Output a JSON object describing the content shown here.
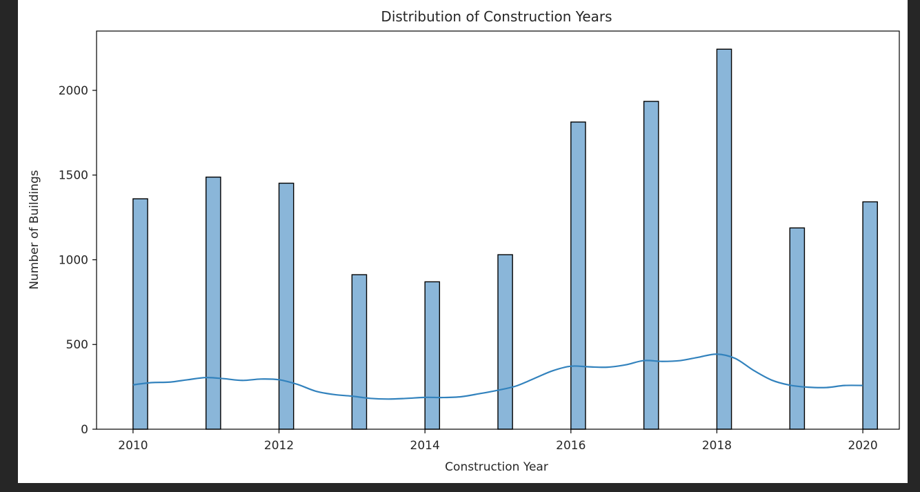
{
  "chart_data": {
    "type": "bar",
    "title": "Distribution of Construction Years",
    "xlabel": "Construction Year",
    "ylabel": "Number of Buildings",
    "xlim": [
      2009.5,
      2020.5
    ],
    "ylim": [
      0,
      2350
    ],
    "xticks": [
      "2010",
      "2012",
      "2014",
      "2016",
      "2018",
      "2020"
    ],
    "yticks": [
      "0",
      "500",
      "1000",
      "1500",
      "2000"
    ],
    "bar_color": "#8ab6d9",
    "bar_edge_color": "#000000",
    "kde_color": "#3282bd",
    "bins": [
      {
        "x_start": 2010.0,
        "x_end": 2010.2,
        "count": 1360
      },
      {
        "x_start": 2011.0,
        "x_end": 2011.2,
        "count": 1488
      },
      {
        "x_start": 2012.0,
        "x_end": 2012.2,
        "count": 1452
      },
      {
        "x_start": 2013.0,
        "x_end": 2013.2,
        "count": 912
      },
      {
        "x_start": 2014.0,
        "x_end": 2014.2,
        "count": 870
      },
      {
        "x_start": 2015.0,
        "x_end": 2015.2,
        "count": 1030
      },
      {
        "x_start": 2016.0,
        "x_end": 2016.2,
        "count": 1813
      },
      {
        "x_start": 2017.0,
        "x_end": 2017.2,
        "count": 1935
      },
      {
        "x_start": 2018.0,
        "x_end": 2018.2,
        "count": 2243
      },
      {
        "x_start": 2019.0,
        "x_end": 2019.2,
        "count": 1188
      },
      {
        "x_start": 2020.0,
        "x_end": 2020.2,
        "count": 1342
      }
    ],
    "kde": {
      "x": [
        2010.0,
        2010.25,
        2010.5,
        2010.75,
        2011.0,
        2011.25,
        2011.5,
        2011.75,
        2012.0,
        2012.25,
        2012.5,
        2012.75,
        2013.0,
        2013.25,
        2013.5,
        2013.75,
        2014.0,
        2014.25,
        2014.5,
        2014.75,
        2015.0,
        2015.25,
        2015.5,
        2015.75,
        2016.0,
        2016.25,
        2016.5,
        2016.75,
        2017.0,
        2017.25,
        2017.5,
        2017.75,
        2018.0,
        2018.25,
        2018.5,
        2018.75,
        2019.0,
        2019.25,
        2019.5,
        2019.75,
        2020.0
      ],
      "y": [
        262,
        275,
        278,
        292,
        305,
        298,
        288,
        296,
        292,
        265,
        225,
        205,
        195,
        182,
        178,
        182,
        188,
        187,
        192,
        210,
        230,
        255,
        300,
        345,
        372,
        368,
        366,
        380,
        405,
        400,
        405,
        425,
        443,
        418,
        348,
        290,
        260,
        248,
        246,
        258,
        258
      ]
    }
  }
}
